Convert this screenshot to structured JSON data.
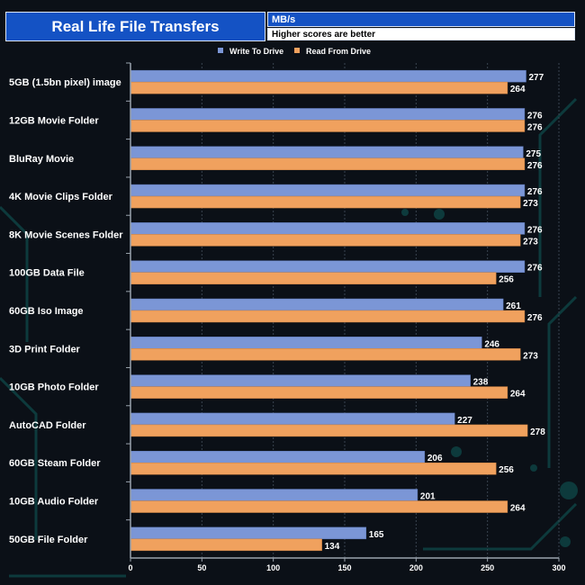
{
  "header": {
    "title": "Real Life File Transfers",
    "unit": "MB/s",
    "subtitle": "Higher scores are better"
  },
  "colors": {
    "write": "#7b96d6",
    "read": "#f0a15e",
    "background": "#0b1017",
    "title_bg": "#1452c4"
  },
  "chart_data": {
    "type": "bar",
    "orientation": "horizontal",
    "categories": [
      "5GB (1.5bn pixel) image",
      "12GB Movie Folder",
      "BluRay Movie",
      "4K Movie Clips Folder",
      "8K Movie Scenes Folder",
      "100GB Data File",
      "60GB Iso Image",
      "3D Print Folder",
      "10GB Photo Folder",
      "AutoCAD Folder",
      "60GB Steam Folder",
      "10GB Audio Folder",
      "50GB File Folder"
    ],
    "series": [
      {
        "name": "Write To  Drive",
        "values": [
          277,
          276,
          275,
          276,
          276,
          276,
          261,
          246,
          238,
          227,
          206,
          201,
          165
        ]
      },
      {
        "name": "Read From  Drive",
        "values": [
          264,
          276,
          276,
          273,
          273,
          256,
          276,
          273,
          264,
          278,
          256,
          264,
          134
        ]
      }
    ],
    "xlim": [
      0,
      300
    ],
    "xticks": [
      0,
      50,
      100,
      150,
      200,
      250,
      300
    ],
    "grid": true,
    "legend": "top-center"
  }
}
